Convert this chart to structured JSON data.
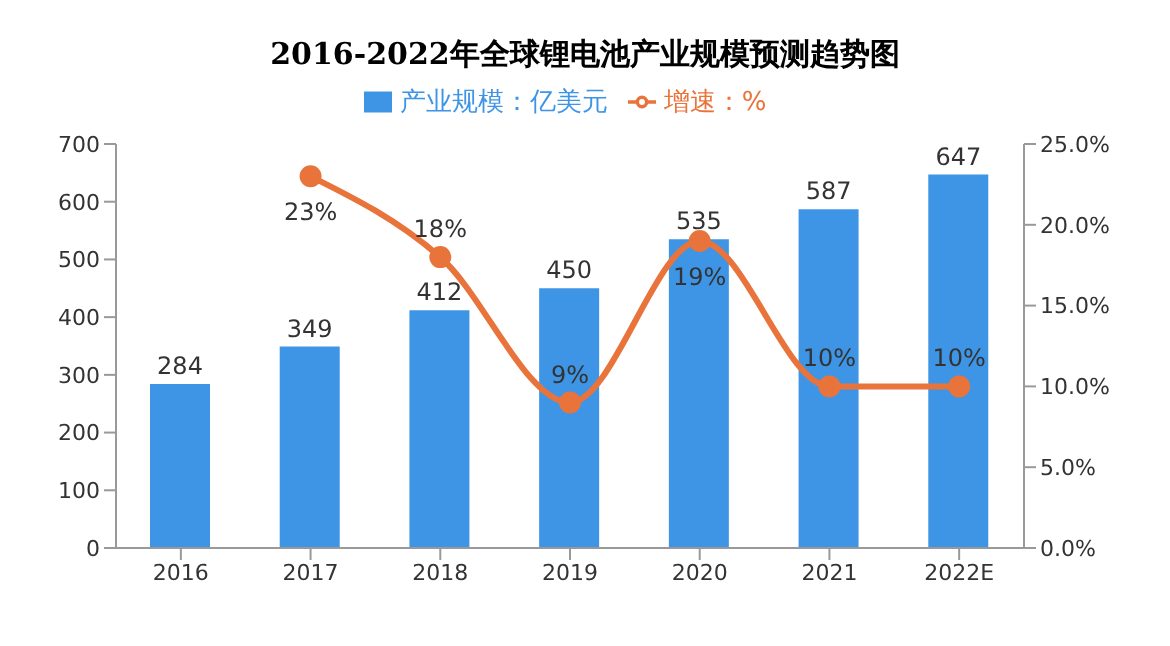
{
  "chart_data": {
    "type": "bar",
    "title": "2016-2022年全球锂电池产业规模预测趋势图",
    "categories": [
      "2016",
      "2017",
      "2018",
      "2019",
      "2020",
      "2021",
      "2022E"
    ],
    "series": [
      {
        "name": "产业规模：亿美元",
        "color": "#3e95e6",
        "values": [
          284,
          349,
          412,
          450,
          535,
          587,
          647
        ],
        "data_labels": true
      },
      {
        "name": "增速：%",
        "type": "line",
        "axis": "y2",
        "color": "#e8743b",
        "marker": "circle",
        "values": [
          null,
          23,
          18,
          9,
          19,
          10,
          10
        ],
        "value_labels": [
          null,
          "23%",
          "18%",
          "9%",
          "19%",
          "10%",
          "10%"
        ]
      }
    ],
    "ylim": [
      0,
      700
    ],
    "yticks": [
      0,
      100,
      200,
      300,
      400,
      500,
      600,
      700
    ],
    "y2lim": [
      0,
      25
    ],
    "y2ticks": [
      {
        "value": 0,
        "label": "0.0%"
      },
      {
        "value": 5,
        "label": "5.0%"
      },
      {
        "value": 10,
        "label": "10.0%"
      },
      {
        "value": 15,
        "label": "15.0%"
      },
      {
        "value": 20,
        "label": "20.0%"
      },
      {
        "value": 25,
        "label": "25.0%"
      }
    ],
    "grid": false,
    "legend": "top"
  }
}
